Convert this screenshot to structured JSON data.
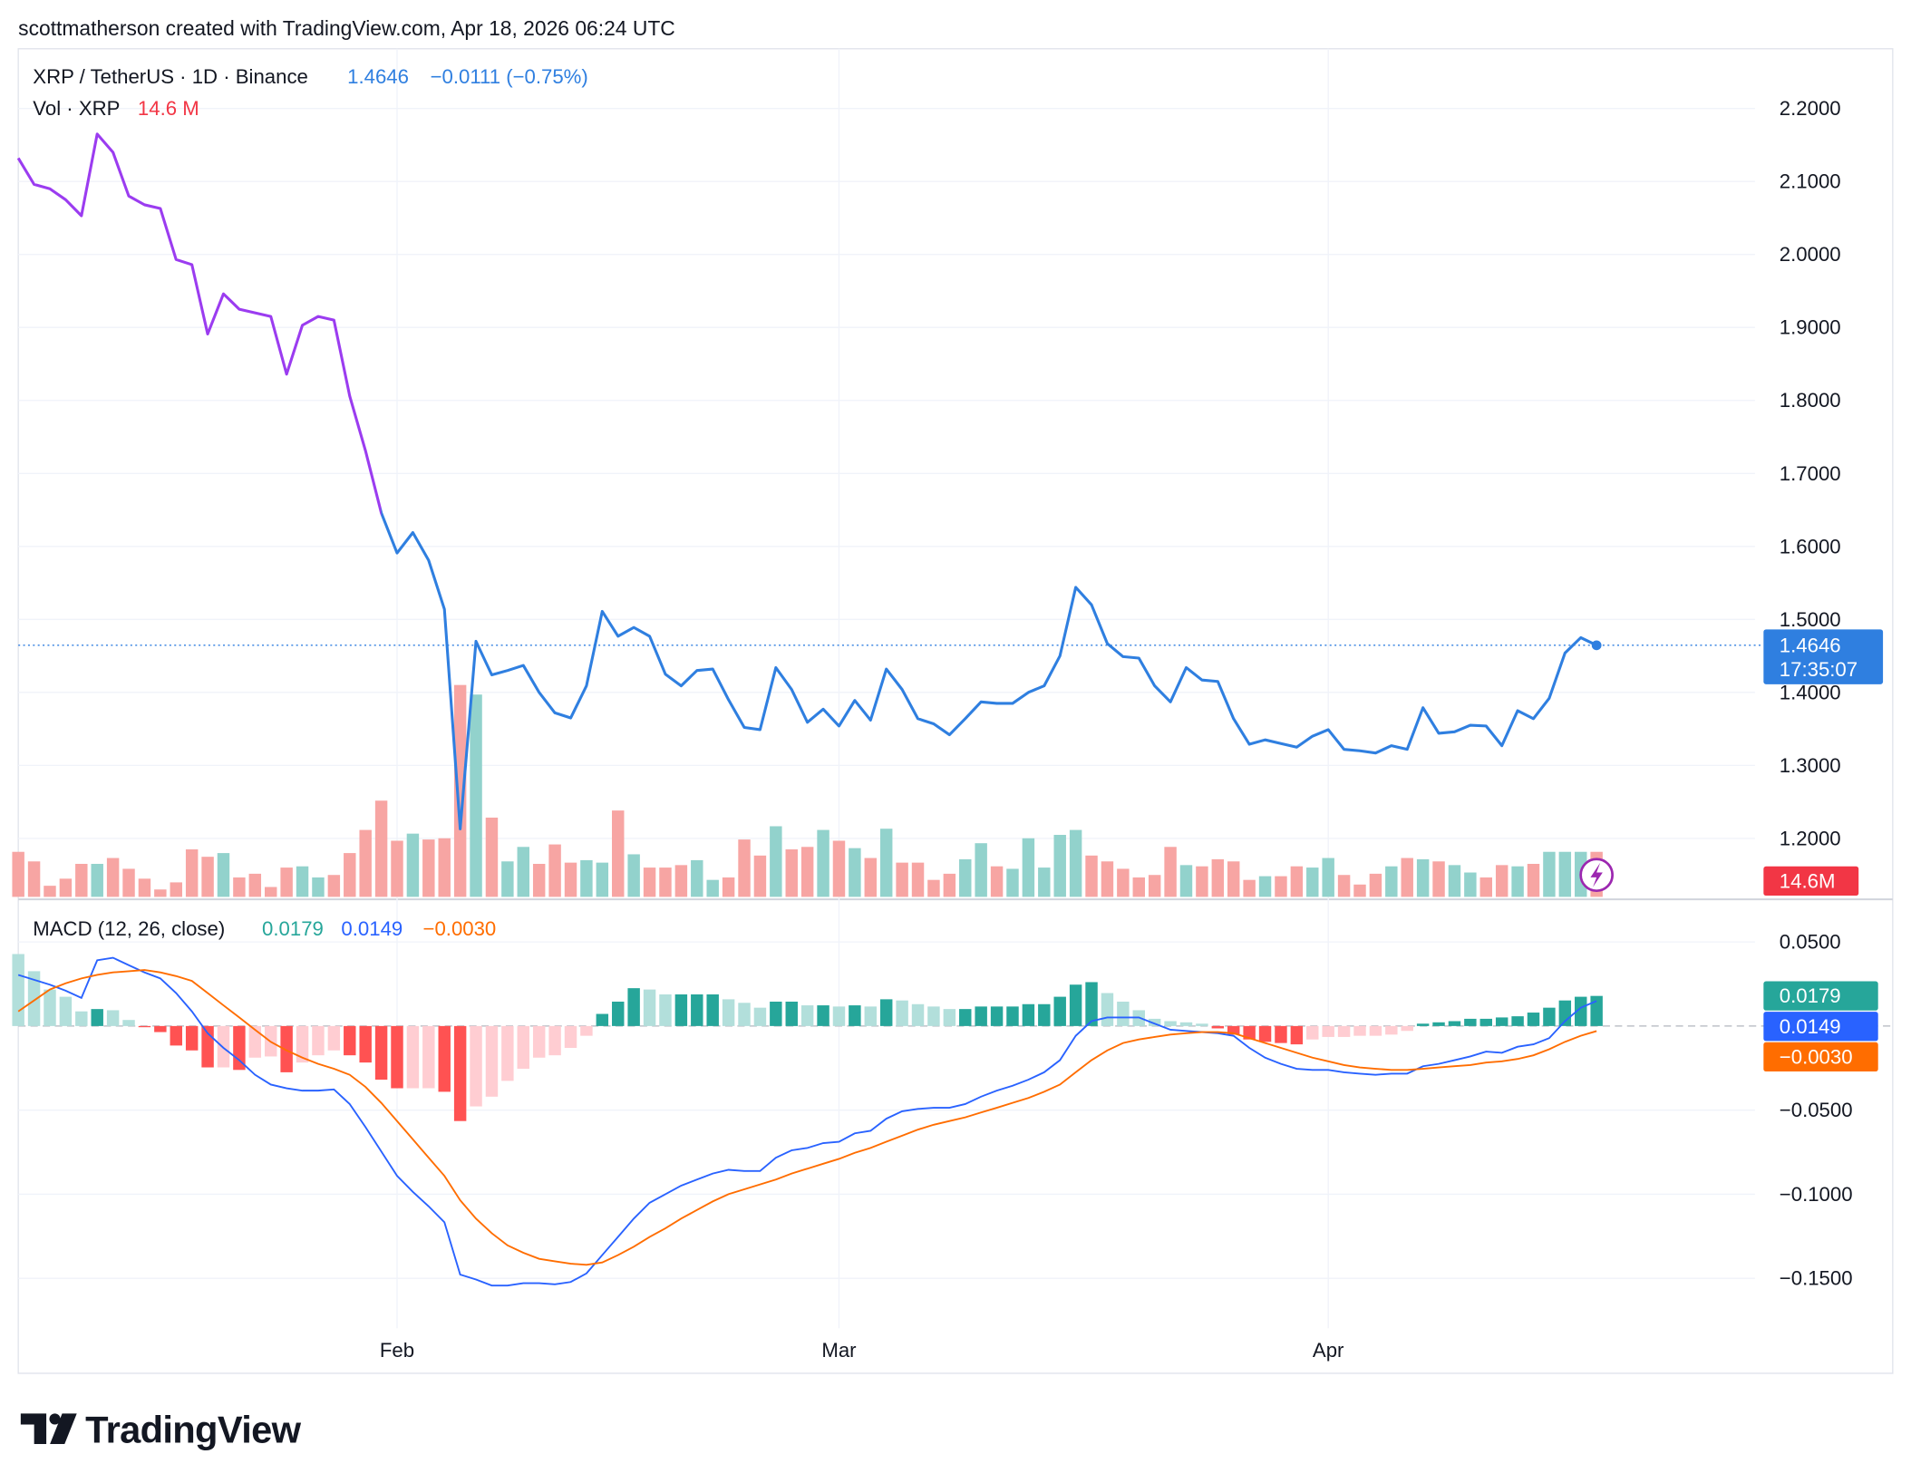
{
  "header": "scottmatherson created with TradingView.com, Apr 18, 2026 06:24 UTC",
  "logo": "TradingView",
  "chart_data": [
    {
      "type": "line",
      "title": "XRP / TetherUS · 1D · Binance",
      "change": "−0.0111 (−0.75%)",
      "countdown": "17:35:07",
      "categories": [
        null,
        null,
        null,
        null,
        null,
        null,
        null,
        null,
        null,
        null,
        null,
        null,
        null,
        null,
        null,
        null,
        null,
        null,
        null,
        null,
        null,
        null,
        null,
        null,
        "Feb",
        null,
        null,
        null,
        null,
        null,
        null,
        null,
        null,
        null,
        null,
        null,
        null,
        null,
        null,
        null,
        null,
        null,
        null,
        null,
        null,
        null,
        null,
        null,
        null,
        null,
        null,
        null,
        "Mar",
        null,
        null,
        null,
        null,
        null,
        null,
        null,
        null,
        null,
        null,
        null,
        null,
        null,
        null,
        null,
        null,
        null,
        null,
        null,
        null,
        null,
        null,
        null,
        null,
        null,
        null,
        null,
        null,
        null,
        null,
        "Apr",
        null,
        null,
        null,
        null,
        null,
        null,
        null,
        null,
        null,
        null,
        null,
        null,
        null,
        null,
        null,
        null,
        null
      ],
      "series": [
        {
          "color": "#2f7fe0",
          "start_color": "#9b3cf0",
          "values": [
            2.132,
            2.096,
            2.09,
            2.075,
            2.053,
            2.165,
            2.14,
            2.08,
            2.068,
            2.063,
            1.993,
            1.986,
            1.891,
            1.946,
            1.925,
            1.92,
            1.915,
            1.836,
            1.903,
            1.915,
            1.91,
            1.806,
            1.731,
            1.646,
            1.591,
            1.619,
            1.581,
            1.514,
            1.213,
            1.47,
            1.424,
            1.43,
            1.437,
            1.4,
            1.372,
            1.365,
            1.409,
            1.511,
            1.477,
            1.489,
            1.477,
            1.425,
            1.409,
            1.43,
            1.432,
            1.39,
            1.352,
            1.349,
            1.434,
            1.404,
            1.359,
            1.377,
            1.354,
            1.389,
            1.362,
            1.432,
            1.404,
            1.364,
            1.357,
            1.342,
            1.364,
            1.387,
            1.385,
            1.385,
            1.4,
            1.409,
            1.45,
            1.544,
            1.52,
            1.467,
            1.449,
            1.447,
            1.409,
            1.387,
            1.434,
            1.417,
            1.415,
            1.364,
            1.329,
            1.335,
            1.33,
            1.325,
            1.34,
            1.349,
            1.322,
            1.32,
            1.317,
            1.327,
            1.322,
            1.379,
            1.344,
            1.346,
            1.355,
            1.354,
            1.327,
            1.375,
            1.364,
            1.392,
            1.454,
            1.475,
            1.4646
          ]
        }
      ],
      "ylim": [
        1.1199,
        2.2818
      ],
      "yticks": [
        {
          "value": 1.2,
          "label": "1.2000"
        },
        {
          "value": 1.3,
          "label": "1.3000"
        },
        {
          "value": 1.4,
          "label": "1.4000"
        },
        {
          "value": 1.5,
          "label": "1.5000"
        },
        {
          "value": 1.6,
          "label": "1.6000"
        },
        {
          "value": 1.7,
          "label": "1.7000"
        },
        {
          "value": 1.8,
          "label": "1.8000"
        },
        {
          "value": 1.9,
          "label": "1.9000"
        },
        {
          "value": 2.0,
          "label": "2.0000"
        },
        {
          "value": 2.1,
          "label": "2.1000"
        },
        {
          "value": 2.2,
          "label": "2.2000"
        }
      ],
      "grid": true,
      "volume": {
        "type": "bar",
        "name": "Vol · XRP",
        "last_label": "14.6 M",
        "badge_label": "14.6M",
        "up_color": "#92d2cc",
        "down_color": "#f7a5a3",
        "label_color": "#f23645",
        "ylim": [
          0,
          275
        ],
        "values": [
          14.6,
          11.5,
          3.6,
          5.9,
          10.7,
          10.7,
          12.6,
          9.1,
          5.9,
          2.4,
          4.7,
          15.4,
          13.0,
          14.2,
          6.3,
          7.5,
          3.2,
          9.5,
          9.9,
          6.3,
          7.1,
          14.2,
          21.7,
          31.2,
          18.2,
          20.5,
          18.6,
          19.0,
          68.7,
          65.6,
          25.7,
          11.5,
          16.2,
          10.7,
          17.0,
          11.1,
          11.9,
          11.1,
          28.0,
          13.8,
          9.5,
          9.5,
          10.3,
          11.9,
          5.5,
          6.3,
          18.6,
          13.4,
          22.9,
          15.4,
          16.2,
          21.7,
          18.2,
          15.8,
          12.6,
          22.1,
          11.1,
          11.1,
          5.5,
          7.5,
          12.2,
          17.4,
          9.9,
          9.1,
          19.0,
          9.5,
          20.1,
          21.7,
          13.4,
          11.5,
          9.1,
          6.3,
          7.1,
          16.2,
          10.3,
          9.9,
          12.2,
          11.5,
          5.5,
          6.7,
          6.7,
          9.9,
          9.5,
          12.6,
          7.1,
          4.0,
          7.5,
          9.9,
          12.6,
          12.2,
          11.5,
          10.3,
          7.9,
          6.3,
          10.3,
          9.9,
          10.7,
          14.6,
          14.6,
          14.6,
          14.6
        ]
      }
    },
    {
      "type": "macd",
      "title": "MACD (12, 26, close)",
      "ylim": [
        -0.1797,
        0.0739
      ],
      "yticks": [
        {
          "value": 0.05,
          "label": "0.0500"
        },
        {
          "value": -0.05,
          "label": "−0.0500"
        },
        {
          "value": -0.1,
          "label": "−0.1000"
        },
        {
          "value": -0.15,
          "label": "−0.1500"
        }
      ],
      "grid": true,
      "series": [
        {
          "type": "histogram",
          "color": "#26a69a",
          "colors": {
            "pos_rising": "#26a69a",
            "pos_falling": "#b2dfdb",
            "neg_falling": "#ff5252",
            "neg_rising": "#ffcdd2"
          },
          "values": [
            0.0428,
            0.0326,
            0.0217,
            0.0174,
            0.0087,
            0.0101,
            0.0094,
            0.0036,
            -0.0007,
            -0.0036,
            -0.0116,
            -0.0145,
            -0.0246,
            -0.0246,
            -0.0261,
            -0.0188,
            -0.0181,
            -0.0275,
            -0.0217,
            -0.0174,
            -0.0145,
            -0.0174,
            -0.0217,
            -0.0319,
            -0.037,
            -0.037,
            -0.037,
            -0.0391,
            -0.0565,
            -0.0478,
            -0.042,
            -0.0326,
            -0.0254,
            -0.0188,
            -0.0174,
            -0.013,
            -0.0058,
            0.0072,
            0.0145,
            0.0225,
            0.0217,
            0.0188,
            0.0188,
            0.0188,
            0.0188,
            0.0159,
            0.0138,
            0.0109,
            0.0145,
            0.0145,
            0.0123,
            0.0123,
            0.0116,
            0.0123,
            0.0116,
            0.0159,
            0.0152,
            0.013,
            0.0116,
            0.0101,
            0.0101,
            0.0116,
            0.0116,
            0.0116,
            0.013,
            0.013,
            0.0174,
            0.0246,
            0.0261,
            0.0196,
            0.0145,
            0.0094,
            0.0043,
            0.0029,
            0.0022,
            0.0014,
            -0.0014,
            -0.0051,
            -0.008,
            -0.0094,
            -0.0101,
            -0.0109,
            -0.008,
            -0.0065,
            -0.0065,
            -0.0058,
            -0.0058,
            -0.0051,
            -0.0029,
            0.0014,
            0.0022,
            0.0029,
            0.0043,
            0.0043,
            0.0051,
            0.0058,
            0.008,
            0.0109,
            0.0152,
            0.0174,
            0.0179
          ]
        },
        {
          "type": "line",
          "color": "#2962ff",
          "values": [
            0.0304,
            0.0275,
            0.0246,
            0.021,
            0.0167,
            0.0391,
            0.0406,
            0.0362,
            0.0319,
            0.0283,
            0.0196,
            0.0087,
            -0.0043,
            -0.013,
            -0.0203,
            -0.029,
            -0.0348,
            -0.037,
            -0.0384,
            -0.0384,
            -0.0377,
            -0.0464,
            -0.0601,
            -0.0746,
            -0.0891,
            -0.0986,
            -0.1072,
            -0.1167,
            -0.1478,
            -0.1507,
            -0.1543,
            -0.1543,
            -0.1529,
            -0.1529,
            -0.1536,
            -0.1522,
            -0.1471,
            -0.1362,
            -0.1254,
            -0.1145,
            -0.1051,
            -0.1,
            -0.0949,
            -0.0913,
            -0.0877,
            -0.0855,
            -0.0862,
            -0.0862,
            -0.0783,
            -0.0739,
            -0.0725,
            -0.0696,
            -0.0688,
            -0.0638,
            -0.0623,
            -0.0551,
            -0.0507,
            -0.0493,
            -0.0486,
            -0.0486,
            -0.0464,
            -0.042,
            -0.0384,
            -0.0355,
            -0.0319,
            -0.0275,
            -0.0203,
            -0.0058,
            0.0029,
            0.0051,
            0.0051,
            0.0051,
            0.0014,
            -0.0022,
            -0.0029,
            -0.0036,
            -0.0043,
            -0.0058,
            -0.013,
            -0.0188,
            -0.0225,
            -0.0254,
            -0.0261,
            -0.0261,
            -0.0275,
            -0.0283,
            -0.029,
            -0.0283,
            -0.0283,
            -0.0239,
            -0.0225,
            -0.0203,
            -0.0181,
            -0.0152,
            -0.0159,
            -0.0123,
            -0.0109,
            -0.0072,
            0.0029,
            0.0109,
            0.0149
          ]
        },
        {
          "type": "line",
          "color": "#ff6d00",
          "last_label": "−0.0030",
          "values": [
            0.0087,
            0.0152,
            0.0217,
            0.0254,
            0.0283,
            0.0304,
            0.0319,
            0.0326,
            0.0333,
            0.0319,
            0.0297,
            0.0268,
            0.0196,
            0.0123,
            0.0051,
            -0.0022,
            -0.0094,
            -0.0145,
            -0.0188,
            -0.0225,
            -0.0254,
            -0.029,
            -0.0362,
            -0.0457,
            -0.0565,
            -0.0674,
            -0.0783,
            -0.0891,
            -0.1036,
            -0.1145,
            -0.1232,
            -0.1304,
            -0.1348,
            -0.1384,
            -0.1399,
            -0.1413,
            -0.142,
            -0.1406,
            -0.1362,
            -0.1312,
            -0.1254,
            -0.1203,
            -0.1145,
            -0.1094,
            -0.1043,
            -0.1,
            -0.0971,
            -0.0942,
            -0.0913,
            -0.0877,
            -0.0848,
            -0.0819,
            -0.079,
            -0.0754,
            -0.0725,
            -0.0688,
            -0.0652,
            -0.0616,
            -0.0587,
            -0.0565,
            -0.0543,
            -0.0514,
            -0.0486,
            -0.0457,
            -0.0428,
            -0.0391,
            -0.0348,
            -0.0275,
            -0.0203,
            -0.0145,
            -0.0101,
            -0.008,
            -0.0065,
            -0.0051,
            -0.0043,
            -0.0036,
            -0.0036,
            -0.0043,
            -0.0072,
            -0.0101,
            -0.013,
            -0.0159,
            -0.0188,
            -0.021,
            -0.0232,
            -0.0246,
            -0.0254,
            -0.0261,
            -0.0261,
            -0.0254,
            -0.0246,
            -0.0239,
            -0.0232,
            -0.0217,
            -0.021,
            -0.0196,
            -0.0174,
            -0.0138,
            -0.0094,
            -0.0058,
            -0.003
          ]
        }
      ]
    }
  ]
}
